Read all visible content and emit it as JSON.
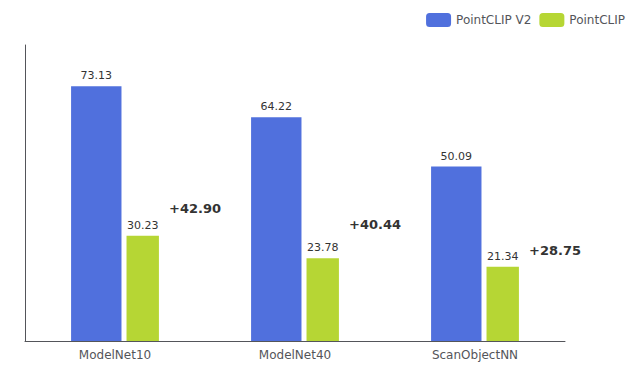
{
  "chart_data": {
    "type": "bar",
    "categories": [
      "ModelNet10",
      "ModelNet40",
      "ScanObjectNN"
    ],
    "series": [
      {
        "name": "PointCLIP V2",
        "values": [
          73.13,
          64.22,
          50.09
        ]
      },
      {
        "name": "PointCLIP",
        "values": [
          30.23,
          23.78,
          21.34
        ]
      }
    ],
    "annotations": [
      "+42.90",
      "+40.44",
      "+28.75"
    ],
    "ylim": [
      0,
      85
    ],
    "yticks": [],
    "grid": false,
    "legend": "upper right",
    "data_labels": true,
    "tick_labels": "x"
  }
}
